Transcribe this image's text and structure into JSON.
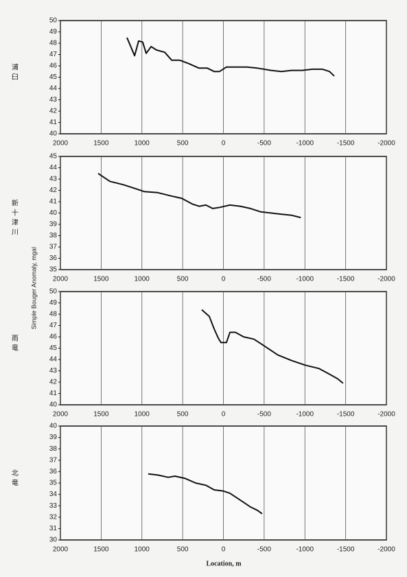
{
  "chart_data": [
    {
      "type": "line",
      "title": "浦臼",
      "xlim": [
        2000,
        -2000
      ],
      "xticks": [
        2000,
        1500,
        1000,
        500,
        0,
        -500,
        -1000,
        -1500,
        -2000
      ],
      "ylim": [
        40,
        50
      ],
      "yticks": [
        40,
        41,
        42,
        43,
        44,
        45,
        46,
        47,
        48,
        49,
        50
      ],
      "grid": true,
      "color": "#111111",
      "x": [
        1183,
        1090,
        1040,
        990,
        947,
        888,
        821,
        720,
        634,
        534,
        425,
        300,
        198,
        114,
        47,
        -37,
        -164,
        -290,
        -417,
        -585,
        -712,
        -838,
        -964,
        -1090,
        -1217,
        -1301,
        -1360
      ],
      "values": [
        48.5,
        46.9,
        48.2,
        48.1,
        47.1,
        47.7,
        47.4,
        47.2,
        46.5,
        46.5,
        46.2,
        45.8,
        45.8,
        45.5,
        45.5,
        45.9,
        45.9,
        45.9,
        45.8,
        45.6,
        45.5,
        45.6,
        45.6,
        45.7,
        45.7,
        45.5,
        45.1
      ]
    },
    {
      "type": "line",
      "title": "新十津川",
      "xlim": [
        2000,
        -2000
      ],
      "xticks": [
        2000,
        1500,
        1000,
        500,
        0,
        -500,
        -1000,
        -1500,
        -2000
      ],
      "ylim": [
        35,
        45
      ],
      "yticks": [
        35,
        36,
        37,
        38,
        39,
        40,
        41,
        42,
        43,
        44,
        45
      ],
      "grid": true,
      "color": "#111111",
      "x": [
        1537,
        1394,
        1225,
        1057,
        973,
        804,
        636,
        510,
        383,
        299,
        215,
        131,
        47,
        -80,
        -206,
        -332,
        -459,
        -585,
        -712,
        -838,
        -950
      ],
      "values": [
        43.5,
        42.8,
        42.5,
        42.1,
        41.9,
        41.8,
        41.5,
        41.3,
        40.8,
        40.6,
        40.7,
        40.4,
        40.5,
        40.7,
        40.6,
        40.4,
        40.1,
        40.0,
        39.9,
        39.8,
        39.6
      ]
    },
    {
      "type": "line",
      "title": "雨竜",
      "xlim": [
        2000,
        -2000
      ],
      "xticks": [
        2000,
        1500,
        1000,
        500,
        0,
        -500,
        -1000,
        -1500,
        -2000
      ],
      "ylim": [
        40,
        50
      ],
      "yticks": [
        40,
        41,
        42,
        43,
        44,
        45,
        46,
        47,
        48,
        49,
        50
      ],
      "grid": true,
      "color": "#111111",
      "x": [
        266,
        173,
        114,
        63,
        30,
        -37,
        -80,
        -147,
        -248,
        -374,
        -501,
        -669,
        -838,
        -1006,
        -1175,
        -1301,
        -1402,
        -1469
      ],
      "values": [
        48.4,
        47.8,
        46.7,
        45.9,
        45.5,
        45.5,
        46.4,
        46.4,
        46.0,
        45.8,
        45.2,
        44.4,
        43.9,
        43.5,
        43.2,
        42.7,
        42.3,
        41.9
      ]
    },
    {
      "type": "line",
      "title": "北竜",
      "xlim": [
        2000,
        -2000
      ],
      "xticks": [
        2000,
        1500,
        1000,
        500,
        0,
        -500,
        -1000,
        -1500,
        -2000
      ],
      "ylim": [
        30,
        40
      ],
      "yticks": [
        30,
        31,
        32,
        33,
        34,
        35,
        36,
        37,
        38,
        39,
        40
      ],
      "grid": true,
      "color": "#111111",
      "x": [
        922,
        804,
        678,
        594,
        467,
        341,
        215,
        114,
        5,
        -80,
        -164,
        -248,
        -332,
        -417,
        -475
      ],
      "values": [
        35.8,
        35.7,
        35.5,
        35.6,
        35.4,
        35.0,
        34.8,
        34.4,
        34.3,
        34.1,
        33.7,
        33.3,
        32.9,
        32.6,
        32.3
      ]
    }
  ],
  "ylabel": "Simple Bouger Anomaly, mgal",
  "xlabel": "Location, m"
}
